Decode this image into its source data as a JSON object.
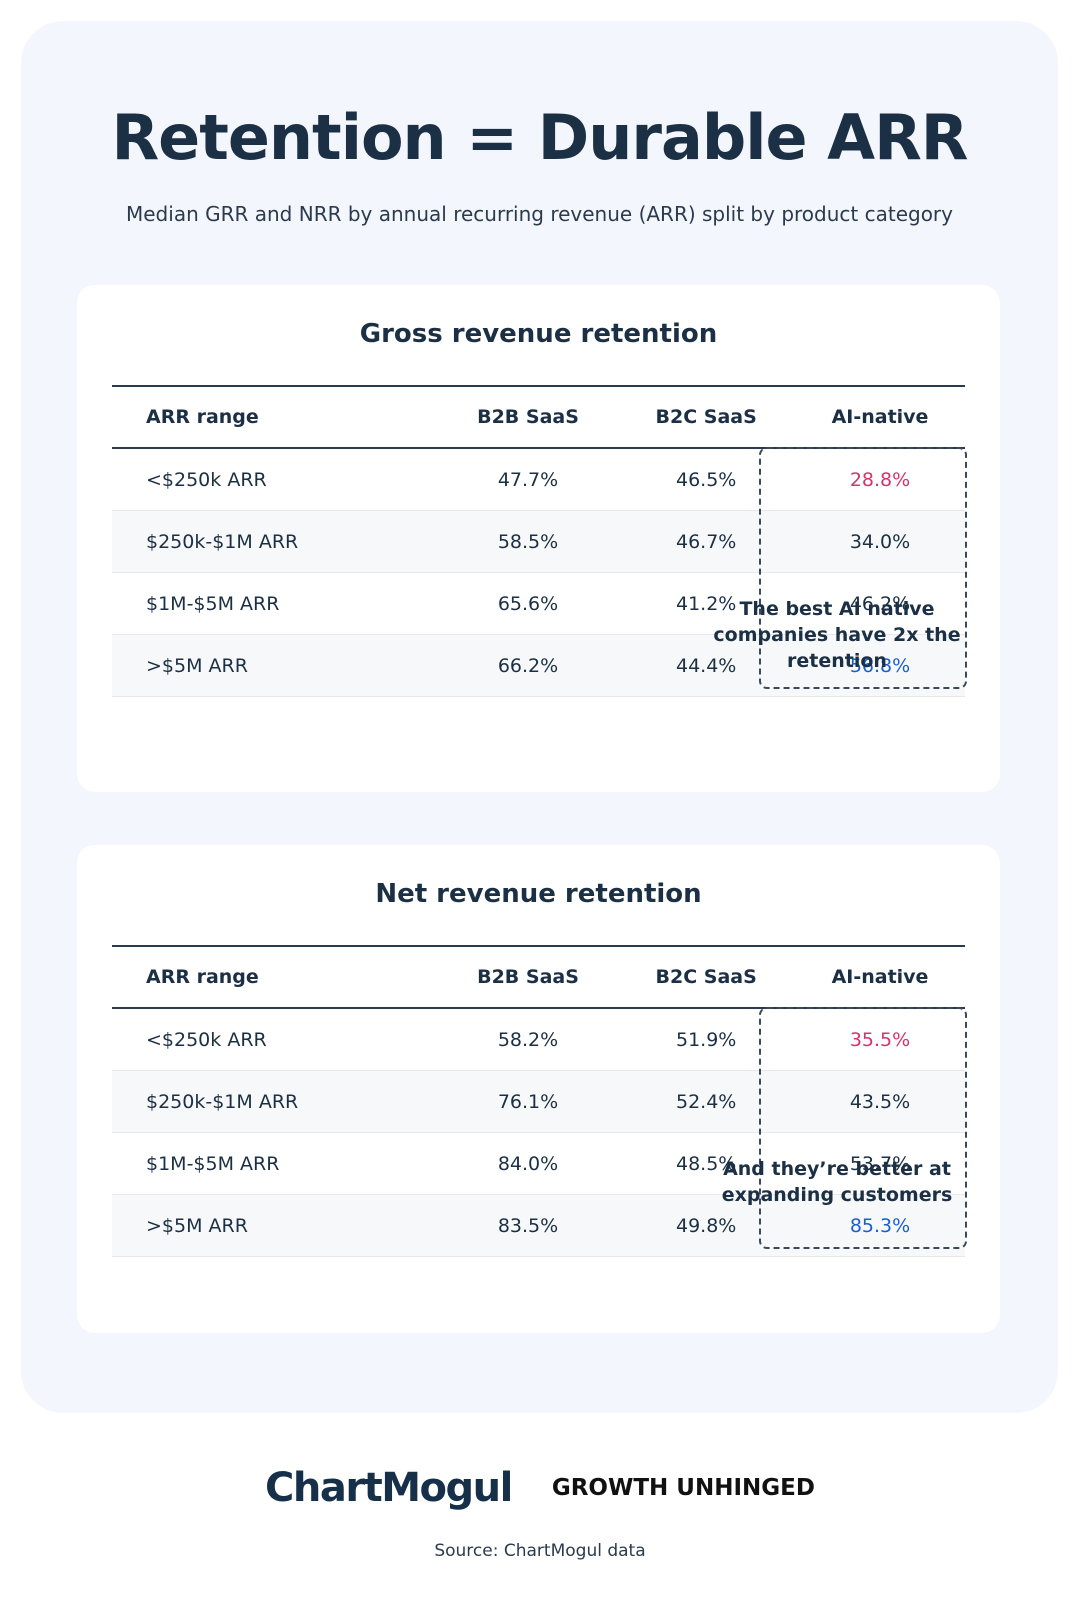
{
  "header": {
    "title": "Retention = Durable ARR",
    "subtitle": "Median GRR and NRR by annual recurring revenue (ARR) split by product category"
  },
  "tables": [
    {
      "title": "Gross revenue retention",
      "columns": [
        "ARR range",
        "B2B SaaS",
        "B2C SaaS",
        "AI-native"
      ],
      "rows": [
        [
          "<$250k ARR",
          "47.7%",
          "46.5%",
          "28.8%"
        ],
        [
          "$250k-$1M ARR",
          "58.5%",
          "46.7%",
          "34.0%"
        ],
        [
          "$1M-$5M ARR",
          "65.6%",
          "41.2%",
          "46.2%"
        ],
        [
          ">$5M ARR",
          "66.2%",
          "44.4%",
          "56.8%"
        ]
      ],
      "note": "The best AI native companies have 2x the retention"
    },
    {
      "title": "Net revenue retention",
      "columns": [
        "ARR range",
        "B2B SaaS",
        "B2C SaaS",
        "AI-native"
      ],
      "rows": [
        [
          "<$250k ARR",
          "58.2%",
          "51.9%",
          "35.5%"
        ],
        [
          "$250k-$1M ARR",
          "76.1%",
          "52.4%",
          "43.5%"
        ],
        [
          "$1M-$5M ARR",
          "84.0%",
          "48.5%",
          "53.7%"
        ],
        [
          ">$5M ARR",
          "83.5%",
          "49.8%",
          "85.3%"
        ]
      ],
      "note": "And they’re better at expanding customers"
    }
  ],
  "footer": {
    "logos": [
      "ChartMogul",
      "GROWTH UNHINGED"
    ],
    "source": "Source: ChartMogul data"
  }
}
